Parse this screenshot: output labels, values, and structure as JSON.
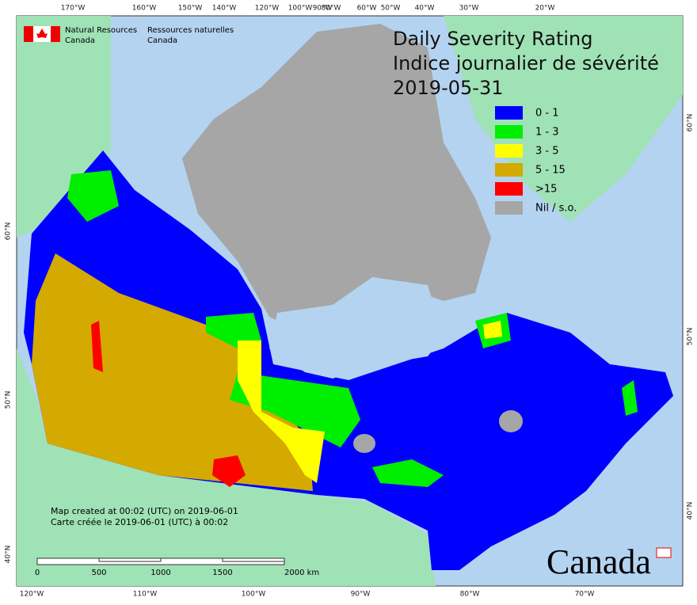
{
  "agency_en": [
    "Natural Resources",
    "Canada"
  ],
  "agency_fr": [
    "Ressources naturelles",
    "Canada"
  ],
  "title": [
    "Daily Severity Rating",
    "Indice journalier de sévérité",
    "2019-05-31"
  ],
  "legend": [
    {
      "label": "0 - 1",
      "color": "#0000ff"
    },
    {
      "label": "1 - 3",
      "color": "#00ee00"
    },
    {
      "label": "3 - 5",
      "color": "#ffff00"
    },
    {
      "label": "5 - 15",
      "color": "#d4a900"
    },
    {
      "label": ">15",
      "color": "#ff0000"
    },
    {
      "label": "Nil / s.o.",
      "color": "#a6a6a6"
    }
  ],
  "top_ticks": [
    "170°W",
    "160°W",
    "150°W",
    "140°W",
    "120°W",
    "100°W",
    "90°W",
    "80°W",
    "60°W",
    "50°W",
    "40°W",
    "30°W",
    "20°W"
  ],
  "bottom_ticks": [
    "120°W",
    "110°W",
    "100°W",
    "90°W",
    "80°W",
    "70°W"
  ],
  "left_ticks": [
    "60°N",
    "50°N",
    "40°N"
  ],
  "right_ticks": [
    "60°N",
    "50°N",
    "40°N"
  ],
  "credits": [
    "Map created at 00:02 (UTC) on 2019-06-01",
    "Carte créée le 2019-06-01 (UTC) à 00:02"
  ],
  "scale_labels": [
    "0",
    "500",
    "1000",
    "1500",
    "2000 km"
  ],
  "wordmark": "Canada"
}
